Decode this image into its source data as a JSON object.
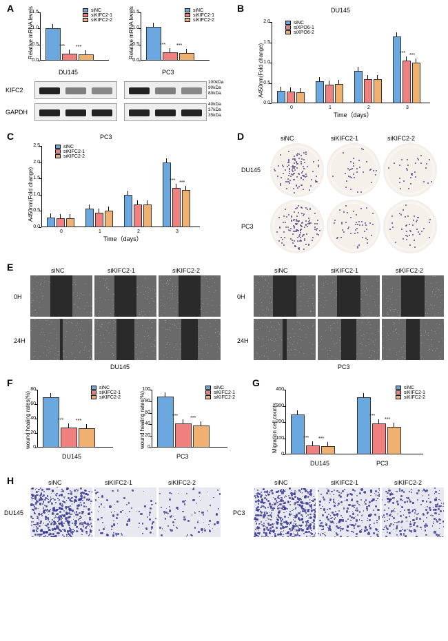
{
  "colors": {
    "siNC": "#6ca8e0",
    "siK1": "#f08080",
    "siK2": "#f0b070",
    "border": "#333",
    "wb_band": "#1a1a1a",
    "well_bg": "#f5f0ea",
    "scratch_light": "#6a6a6a",
    "scratch_dark": "#2a2a2a",
    "migr_heavy": "#3a3a9a",
    "migr_light": "#d0d0e8"
  },
  "conditions": [
    "siNC",
    "siKIFC2-1",
    "siKIFC2-2"
  ],
  "conditionsB": [
    "siNC",
    "siXPO6-1",
    "siXPO6-2"
  ],
  "cells": [
    "DU145",
    "PC3"
  ],
  "A": {
    "ylabel": "Relative mRNA levels",
    "ymax": 1.5,
    "ytick": 0.5,
    "du145": {
      "vals": [
        1.0,
        0.22,
        0.2
      ],
      "sig": [
        "",
        "***",
        "***"
      ]
    },
    "pc3": {
      "vals": [
        1.05,
        0.25,
        0.23
      ],
      "sig": [
        "",
        "***",
        "***"
      ]
    },
    "wb_rows": [
      "KIFC2",
      "GAPDH"
    ],
    "markers_top": [
      "100kDa",
      "90kDa",
      "80kDa"
    ],
    "markers_bot": [
      "40kDa",
      "37kDa",
      "35kDa"
    ]
  },
  "B": {
    "title": "DU145",
    "ylabel": "A450nm(Fold change)",
    "xlabel": "Time（days）",
    "ymax": 2.0,
    "ytick": 0.5,
    "x": [
      "0",
      "1",
      "2",
      "3"
    ],
    "series": {
      "siNC": [
        0.3,
        0.55,
        0.8,
        1.65
      ],
      "siK1": [
        0.28,
        0.45,
        0.6,
        1.05
      ],
      "siK2": [
        0.27,
        0.47,
        0.6,
        1.0
      ]
    },
    "sig3": [
      "",
      "",
      "",
      "***"
    ]
  },
  "C": {
    "title": "PC3",
    "ylabel": "A450nm(Fold change)",
    "xlabel": "Time（days）",
    "ymax": 2.5,
    "ytick": 0.5,
    "x": [
      "0",
      "1",
      "2",
      "3"
    ],
    "series": {
      "siNC": [
        0.3,
        0.58,
        1.0,
        2.0
      ],
      "siK1": [
        0.28,
        0.45,
        0.7,
        1.2
      ],
      "siK2": [
        0.27,
        0.5,
        0.7,
        1.15
      ]
    },
    "sig3": [
      "",
      "",
      "",
      "***"
    ]
  },
  "F": {
    "ylabel": "wound healing rates(%)",
    "ymax_du": 80,
    "ymax_pc": 100,
    "ytick": 20,
    "du145": {
      "vals": [
        70,
        28,
        27
      ],
      "sig": [
        "",
        "***",
        "***"
      ]
    },
    "pc3": {
      "vals": [
        88,
        42,
        38
      ],
      "sig": [
        "",
        "***",
        "***"
      ]
    }
  },
  "G": {
    "ylabel": "Migration cell counts",
    "ymax": 400,
    "ytick": 100,
    "du145": {
      "vals": [
        245,
        55,
        50
      ],
      "sig": [
        "",
        "***",
        "***"
      ]
    },
    "pc3": {
      "vals": [
        355,
        190,
        170
      ],
      "sig": [
        "",
        "***",
        "***"
      ]
    }
  },
  "E_timepoints": [
    "0H",
    "24H"
  ],
  "scratch_gaps": {
    "DU145": {
      "0H": [
        0.36,
        0.36,
        0.36
      ],
      "24H": [
        0.04,
        0.28,
        0.26
      ]
    },
    "PC3": {
      "0H": [
        0.38,
        0.38,
        0.38
      ],
      "24H": [
        0.06,
        0.24,
        0.22
      ]
    }
  },
  "colony_density": {
    "DU145": [
      0.8,
      0.25,
      0.22
    ],
    "PC3": [
      0.9,
      0.35,
      0.3
    ]
  },
  "migration_density": {
    "DU145": [
      0.85,
      0.15,
      0.14
    ],
    "PC3": [
      0.9,
      0.45,
      0.4
    ]
  }
}
